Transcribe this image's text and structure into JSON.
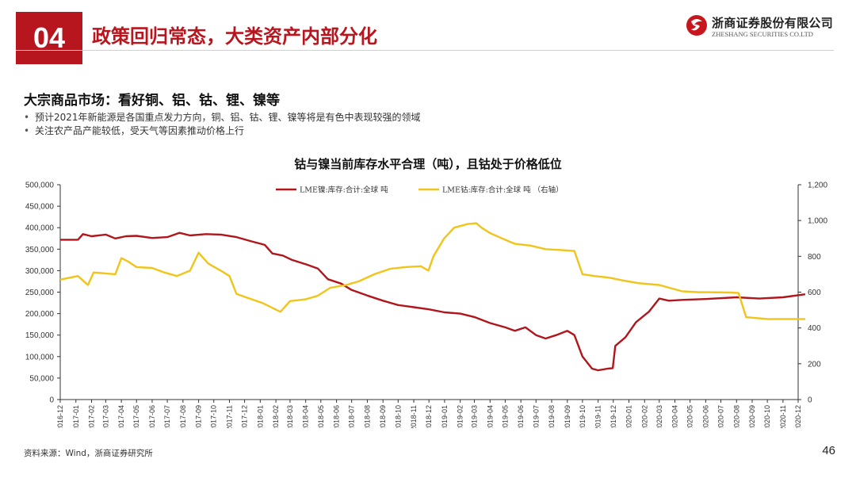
{
  "header": {
    "section_number": "04",
    "title": "政策回归常态，大类资产内部分化",
    "company_cn": "浙商证券股份有限公司",
    "company_en": "ZHESHANG SECURITIES CO.LTD"
  },
  "section": {
    "title": "大宗商品市场：看好铜、铝、钴、锂、镍等",
    "bullets": [
      "预计2021年新能源是各国重点发力方向，铜、铝、钴、锂、镍等将是有色中表现较强的领域",
      "关注农产品产能较低，受天气等因素推动价格上行"
    ]
  },
  "footer": {
    "source": "资料来源：Wind，浙商证券研究所",
    "page": "46"
  },
  "chart_data": {
    "type": "line",
    "title": "钴与镍当前库存水平合理（吨），且钴处于价格低位",
    "x_ticks": [
      "2016-12",
      "2017-01",
      "2017-02",
      "2017-03",
      "2017-04",
      "2017-05",
      "2017-06",
      "2017-07",
      "2017-08",
      "2017-09",
      "2017-10",
      "2017-11",
      "2017-12",
      "2018-01",
      "2018-02",
      "2018-03",
      "2018-04",
      "2018-05",
      "2018-06",
      "2018-07",
      "2018-08",
      "2018-09",
      "2018-10",
      "2018-11",
      "2018-12",
      "2019-01",
      "2019-02",
      "2019-03",
      "2019-04",
      "2019-05",
      "2019-06",
      "2019-07",
      "2019-08",
      "2019-09",
      "2019-10",
      "2019-11",
      "2019-12",
      "2020-01",
      "2020-02",
      "2020-03",
      "2020-04",
      "2020-05",
      "2020-06",
      "2020-07",
      "2020-08",
      "2020-09",
      "2020-10",
      "2020-11",
      "2020-12"
    ],
    "y_left": {
      "min": 0,
      "max": 500000,
      "ticks": [
        "0",
        "50,000",
        "100,000",
        "150,000",
        "200,000",
        "250,000",
        "300,000",
        "350,000",
        "400,000",
        "450,000",
        "500,000"
      ]
    },
    "y_right": {
      "min": 0,
      "max": 1200,
      "ticks": [
        "0",
        "200",
        "400",
        "600",
        "800",
        "1,000",
        "1,200"
      ]
    },
    "legend_position": "top",
    "grid": false,
    "series": [
      {
        "name": "LME镍:库存:合计:全球 吨",
        "axis": "left",
        "color": "#b0161c",
        "points": [
          [
            "2016-12-01",
            372000
          ],
          [
            "2017-01-05",
            372000
          ],
          [
            "2017-01-15",
            385000
          ],
          [
            "2017-02-01",
            380000
          ],
          [
            "2017-03-01",
            384000
          ],
          [
            "2017-03-20",
            375000
          ],
          [
            "2017-04-10",
            380000
          ],
          [
            "2017-05-01",
            381000
          ],
          [
            "2017-06-01",
            376000
          ],
          [
            "2017-07-01",
            378000
          ],
          [
            "2017-07-25",
            388000
          ],
          [
            "2017-08-15",
            382000
          ],
          [
            "2017-09-15",
            385000
          ],
          [
            "2017-10-15",
            384000
          ],
          [
            "2017-11-15",
            378000
          ],
          [
            "2017-12-15",
            368000
          ],
          [
            "2018-01-10",
            360000
          ],
          [
            "2018-01-25",
            340000
          ],
          [
            "2018-02-15",
            335000
          ],
          [
            "2018-03-05",
            325000
          ],
          [
            "2018-04-01",
            315000
          ],
          [
            "2018-04-25",
            305000
          ],
          [
            "2018-05-15",
            280000
          ],
          [
            "2018-06-10",
            270000
          ],
          [
            "2018-07-01",
            255000
          ],
          [
            "2018-08-01",
            242000
          ],
          [
            "2018-09-01",
            230000
          ],
          [
            "2018-10-01",
            220000
          ],
          [
            "2018-11-01",
            215000
          ],
          [
            "2018-12-01",
            210000
          ],
          [
            "2019-01-01",
            203000
          ],
          [
            "2019-02-01",
            200000
          ],
          [
            "2019-03-01",
            192000
          ],
          [
            "2019-04-01",
            178000
          ],
          [
            "2019-05-01",
            168000
          ],
          [
            "2019-05-20",
            160000
          ],
          [
            "2019-06-10",
            168000
          ],
          [
            "2019-07-01",
            150000
          ],
          [
            "2019-07-20",
            142000
          ],
          [
            "2019-08-10",
            150000
          ],
          [
            "2019-09-01",
            160000
          ],
          [
            "2019-09-15",
            150000
          ],
          [
            "2019-10-01",
            100000
          ],
          [
            "2019-10-20",
            72000
          ],
          [
            "2019-11-01",
            68000
          ],
          [
            "2019-11-20",
            72000
          ],
          [
            "2019-11-30",
            73000
          ],
          [
            "2019-12-05",
            125000
          ],
          [
            "2019-12-25",
            145000
          ],
          [
            "2020-01-15",
            180000
          ],
          [
            "2020-02-10",
            205000
          ],
          [
            "2020-03-01",
            235000
          ],
          [
            "2020-03-20",
            230000
          ],
          [
            "2020-04-15",
            232000
          ],
          [
            "2020-06-01",
            234000
          ],
          [
            "2020-08-01",
            238000
          ],
          [
            "2020-09-15",
            235000
          ],
          [
            "2020-11-01",
            238000
          ],
          [
            "2020-12-15",
            245000
          ]
        ]
      },
      {
        "name": "LME钴:库存:合计:全球 吨 （右轴）",
        "axis": "right",
        "color": "#f0c419",
        "points": [
          [
            "2016-12-01",
            670
          ],
          [
            "2017-01-05",
            690
          ],
          [
            "2017-01-25",
            640
          ],
          [
            "2017-02-05",
            710
          ],
          [
            "2017-03-20",
            700
          ],
          [
            "2017-04-01",
            790
          ],
          [
            "2017-04-15",
            770
          ],
          [
            "2017-05-01",
            740
          ],
          [
            "2017-06-01",
            735
          ],
          [
            "2017-06-25",
            710
          ],
          [
            "2017-07-20",
            690
          ],
          [
            "2017-08-15",
            720
          ],
          [
            "2017-09-01",
            820
          ],
          [
            "2017-09-20",
            760
          ],
          [
            "2017-10-15",
            720
          ],
          [
            "2017-11-01",
            690
          ],
          [
            "2017-11-15",
            590
          ],
          [
            "2017-12-05",
            570
          ],
          [
            "2018-01-05",
            540
          ],
          [
            "2018-02-10",
            490
          ],
          [
            "2018-03-01",
            550
          ],
          [
            "2018-04-01",
            560
          ],
          [
            "2018-04-25",
            580
          ],
          [
            "2018-05-20",
            625
          ],
          [
            "2018-06-20",
            640
          ],
          [
            "2018-07-15",
            660
          ],
          [
            "2018-08-15",
            700
          ],
          [
            "2018-09-15",
            730
          ],
          [
            "2018-10-15",
            740
          ],
          [
            "2018-11-15",
            745
          ],
          [
            "2018-11-30",
            720
          ],
          [
            "2018-12-10",
            800
          ],
          [
            "2018-12-31",
            900
          ],
          [
            "2019-01-20",
            960
          ],
          [
            "2019-02-15",
            980
          ],
          [
            "2019-03-05",
            985
          ],
          [
            "2019-03-15",
            960
          ],
          [
            "2019-04-01",
            930
          ],
          [
            "2019-04-25",
            900
          ],
          [
            "2019-05-20",
            870
          ],
          [
            "2019-06-20",
            860
          ],
          [
            "2019-07-20",
            840
          ],
          [
            "2019-08-20",
            835
          ],
          [
            "2019-09-15",
            830
          ],
          [
            "2019-10-01",
            700
          ],
          [
            "2019-10-25",
            690
          ],
          [
            "2019-11-25",
            680
          ],
          [
            "2019-12-20",
            665
          ],
          [
            "2020-01-20",
            650
          ],
          [
            "2020-03-01",
            640
          ],
          [
            "2020-04-15",
            605
          ],
          [
            "2020-05-15",
            600
          ],
          [
            "2020-07-20",
            598
          ],
          [
            "2020-08-05",
            595
          ],
          [
            "2020-08-20",
            460
          ],
          [
            "2020-10-01",
            450
          ],
          [
            "2020-12-15",
            450
          ]
        ]
      }
    ]
  }
}
